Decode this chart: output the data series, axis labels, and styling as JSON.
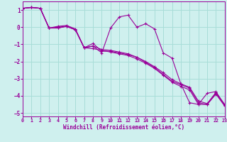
{
  "xlabel": "Windchill (Refroidissement éolien,°C)",
  "xlim": [
    0,
    23
  ],
  "ylim": [
    -5.2,
    1.5
  ],
  "xticks": [
    0,
    1,
    2,
    3,
    4,
    5,
    6,
    7,
    8,
    9,
    10,
    11,
    12,
    13,
    14,
    15,
    16,
    17,
    18,
    19,
    20,
    21,
    22,
    23
  ],
  "yticks": [
    -5,
    -4,
    -3,
    -2,
    -1,
    0,
    1
  ],
  "background_color": "#cff0ee",
  "grid_color": "#a8ddd8",
  "line_color": "#990099",
  "line1_y": [
    1.1,
    1.15,
    1.1,
    -0.05,
    -0.05,
    0.05,
    -0.15,
    -1.2,
    -1.25,
    -1.35,
    -1.45,
    -1.55,
    -1.65,
    -1.85,
    -2.1,
    -2.4,
    -2.8,
    -3.2,
    -3.45,
    -3.65,
    -4.5,
    -4.5,
    -3.9,
    -4.6
  ],
  "line2_y": [
    1.1,
    1.15,
    1.1,
    -0.05,
    0.0,
    0.05,
    -0.15,
    -1.2,
    -1.1,
    -1.5,
    -0.05,
    0.6,
    0.7,
    0.0,
    0.2,
    -0.1,
    -1.5,
    -1.8,
    -3.3,
    -4.4,
    -4.5,
    -3.85,
    -3.75,
    -4.55
  ],
  "line3_y": [
    1.1,
    1.15,
    1.1,
    -0.05,
    0.05,
    0.1,
    -0.1,
    -1.2,
    -1.1,
    -1.3,
    -1.35,
    -1.45,
    -1.55,
    -1.75,
    -2.05,
    -2.35,
    -2.75,
    -3.15,
    -3.35,
    -3.55,
    -4.4,
    -4.5,
    -3.85,
    -4.55
  ],
  "line4_y": [
    1.1,
    1.15,
    1.1,
    -0.05,
    -0.05,
    0.05,
    -0.15,
    -1.2,
    -0.95,
    -1.4,
    -1.4,
    -1.5,
    -1.6,
    -1.75,
    -2.0,
    -2.3,
    -2.65,
    -3.05,
    -3.3,
    -3.5,
    -4.3,
    -4.45,
    -3.8,
    -4.5
  ]
}
